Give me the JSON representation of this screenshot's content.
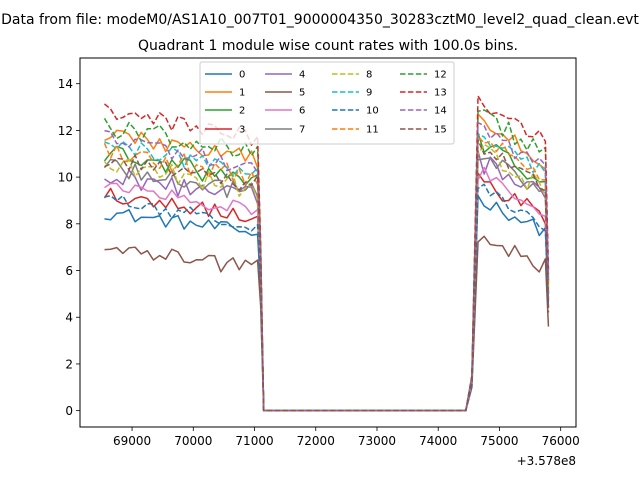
{
  "chart_data": {
    "type": "line",
    "suptitle": "Data from file: modeM0/AS1A10_007T01_9000004350_30283cztM0_level2_quad_clean.evt",
    "title": "Quadrant 1 module wise count rates with 100.0s bins.",
    "xlabel": "",
    "ylabel": "",
    "x_offset_label": "+3.578e8",
    "xlim": [
      68150,
      76250
    ],
    "ylim": [
      -0.7,
      15.1
    ],
    "xticks": [
      69000,
      70000,
      71000,
      72000,
      73000,
      74000,
      75000,
      76000
    ],
    "xtick_labels": [
      "69000",
      "70000",
      "71000",
      "72000",
      "73000",
      "74000",
      "75000",
      "76000"
    ],
    "yticks": [
      0,
      2,
      4,
      6,
      8,
      10,
      12,
      14
    ],
    "ytick_labels": [
      "0",
      "2",
      "4",
      "6",
      "8",
      "10",
      "12",
      "14"
    ],
    "grid": false,
    "legend_position": "top-center",
    "legend_columns": 4,
    "segments": {
      "on1": {
        "start": 68550,
        "end": 71050,
        "step": 100
      },
      "on2": {
        "start": 74650,
        "end": 75750,
        "step": 100
      },
      "zero_range": [
        71150,
        74450
      ],
      "drop1_x": 71100,
      "rise2_x": 74550,
      "end_x": 75800
    },
    "series": [
      {
        "name": "0",
        "color": "#1f77b4",
        "dash": "solid",
        "level": 8.5,
        "slope": 0.45,
        "noise": 0.3,
        "drop_value": 5.2,
        "rise_value": 1.2,
        "end_value": 4.4
      },
      {
        "name": "1",
        "color": "#ff7f0e",
        "dash": "solid",
        "level": 11.9,
        "slope": 0.6,
        "noise": 0.4,
        "drop_value": 6.8,
        "rise_value": 1.4,
        "end_value": 5.5
      },
      {
        "name": "2",
        "color": "#2ca02c",
        "dash": "solid",
        "level": 11.0,
        "slope": 0.6,
        "noise": 0.45,
        "drop_value": 6.4,
        "rise_value": 1.3,
        "end_value": 5.0
      },
      {
        "name": "3",
        "color": "#d62728",
        "dash": "solid",
        "level": 9.3,
        "slope": 0.5,
        "noise": 0.35,
        "drop_value": 5.6,
        "rise_value": 1.2,
        "end_value": 4.7
      },
      {
        "name": "4",
        "color": "#9467bd",
        "dash": "solid",
        "level": 10.1,
        "slope": 0.5,
        "noise": 0.45,
        "drop_value": 6.0,
        "rise_value": 1.3,
        "end_value": 5.0
      },
      {
        "name": "5",
        "color": "#8c564b",
        "dash": "solid",
        "level": 7.0,
        "slope": 0.45,
        "noise": 0.4,
        "drop_value": 4.5,
        "rise_value": 1.0,
        "end_value": 3.6
      },
      {
        "name": "6",
        "color": "#e377c2",
        "dash": "solid",
        "level": 9.6,
        "slope": 0.55,
        "noise": 0.4,
        "drop_value": 5.8,
        "rise_value": 1.2,
        "end_value": 4.8
      },
      {
        "name": "7",
        "color": "#7f7f7f",
        "dash": "solid",
        "level": 10.4,
        "slope": 0.55,
        "noise": 0.4,
        "drop_value": 6.2,
        "rise_value": 1.3,
        "end_value": 5.2
      },
      {
        "name": "8",
        "color": "#bcbd22",
        "dash": "dashed",
        "level": 10.6,
        "slope": 0.55,
        "noise": 0.45,
        "drop_value": 6.3,
        "rise_value": 1.3,
        "end_value": 5.3
      },
      {
        "name": "9",
        "color": "#17becf",
        "dash": "dashed",
        "level": 11.4,
        "slope": 0.6,
        "noise": 0.4,
        "drop_value": 6.6,
        "rise_value": 1.4,
        "end_value": 5.7
      },
      {
        "name": "10",
        "color": "#1f77b4",
        "dash": "dashed",
        "level": 9.0,
        "slope": 0.5,
        "noise": 0.35,
        "drop_value": 5.4,
        "rise_value": 1.1,
        "end_value": 4.5
      },
      {
        "name": "11",
        "color": "#ff7f0e",
        "dash": "dashed",
        "level": 11.2,
        "slope": 0.6,
        "noise": 0.45,
        "drop_value": 6.5,
        "rise_value": 1.4,
        "end_value": 5.4
      },
      {
        "name": "12",
        "color": "#2ca02c",
        "dash": "dashed",
        "level": 12.2,
        "slope": 0.6,
        "noise": 0.45,
        "drop_value": 7.0,
        "rise_value": 1.5,
        "end_value": 5.8
      },
      {
        "name": "13",
        "color": "#d62728",
        "dash": "dashed",
        "level": 12.8,
        "slope": 0.55,
        "noise": 0.4,
        "drop_value": 7.2,
        "rise_value": 1.5,
        "end_value": 6.0
      },
      {
        "name": "14",
        "color": "#9467bd",
        "dash": "dashed",
        "level": 11.6,
        "slope": 0.6,
        "noise": 0.4,
        "drop_value": 6.7,
        "rise_value": 1.4,
        "end_value": 5.6
      },
      {
        "name": "15",
        "color": "#8c564b",
        "dash": "dashed",
        "level": 10.8,
        "slope": 0.55,
        "noise": 0.4,
        "drop_value": 6.2,
        "rise_value": 1.3,
        "end_value": 4.2
      }
    ]
  }
}
